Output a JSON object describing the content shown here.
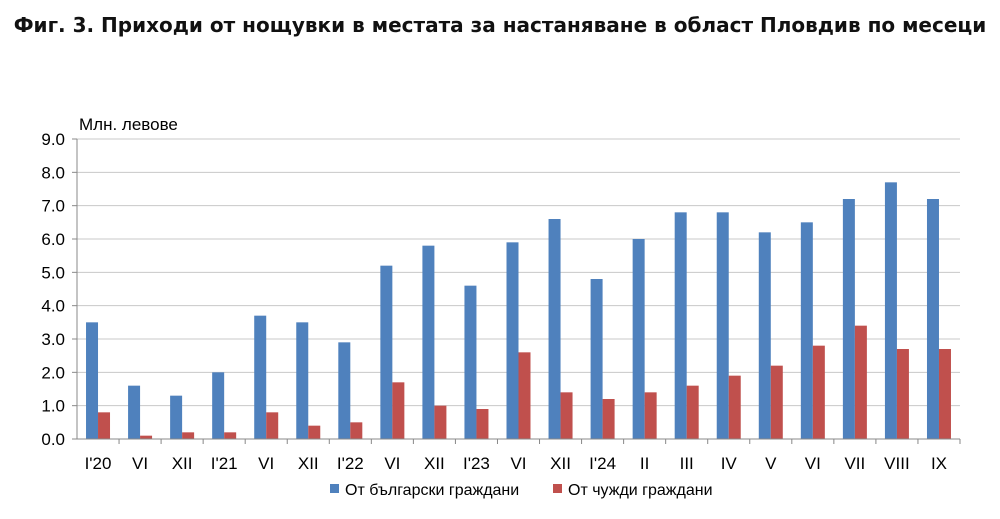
{
  "chart_data": {
    "type": "bar",
    "title": "Фиг. 3. Приходи от нощувки в местата за настаняване в област Пловдив по месеци",
    "ylabel": "Млн. левове",
    "xlabel": "",
    "ylim": [
      0,
      9
    ],
    "y_ticks": [
      "0.0",
      "1.0",
      "2.0",
      "3.0",
      "4.0",
      "5.0",
      "6.0",
      "7.0",
      "8.0",
      "9.0"
    ],
    "grid": true,
    "legend_position": "bottom",
    "categories": [
      "I'20",
      "VI",
      "XII",
      "I'21",
      "VI",
      "XII",
      "I'22",
      "VI",
      "XII",
      "I'23",
      "VI",
      "XII",
      "I'24",
      "II",
      "III",
      "IV",
      "V",
      "VI",
      "VII",
      "VIII",
      "IX"
    ],
    "series": [
      {
        "name": "От български граждани",
        "color": "#4f81bd",
        "values": [
          3.5,
          1.6,
          1.3,
          2.0,
          3.7,
          3.5,
          2.9,
          5.2,
          5.8,
          4.6,
          5.9,
          6.6,
          4.8,
          6.0,
          6.8,
          6.8,
          6.2,
          6.5,
          7.2,
          7.7,
          7.2
        ]
      },
      {
        "name": "От чужди граждани",
        "color": "#c0504d",
        "values": [
          0.8,
          0.1,
          0.2,
          0.2,
          0.8,
          0.4,
          0.5,
          1.7,
          1.0,
          0.9,
          2.6,
          1.4,
          1.2,
          1.4,
          1.6,
          1.9,
          2.2,
          2.8,
          3.4,
          2.7,
          2.7
        ]
      }
    ]
  }
}
